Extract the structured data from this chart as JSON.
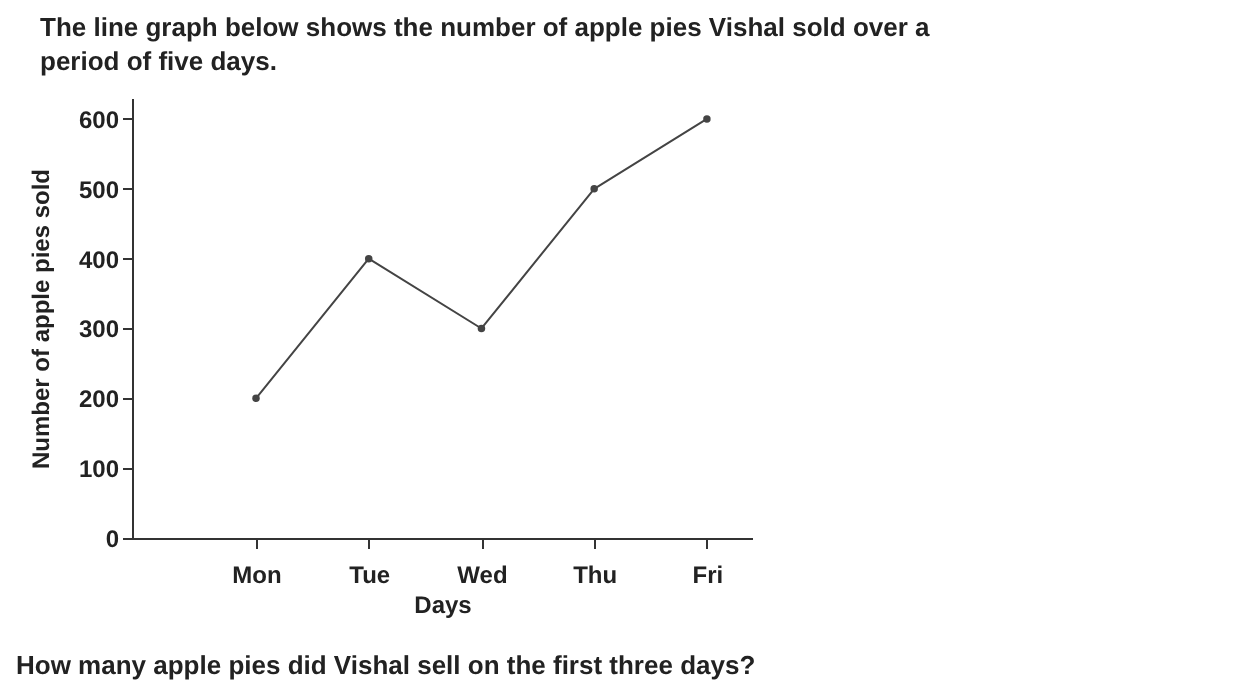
{
  "chart_data": {
    "type": "line",
    "title": "The line graph below shows the number of apple pies Vishal sold over a period of five days.",
    "xlabel": "Days",
    "ylabel": "Number of apple pies sold",
    "categories": [
      "Mon",
      "Tue",
      "Wed",
      "Thu",
      "Fri"
    ],
    "series": [
      {
        "color": "#444444",
        "values": [
          200,
          400,
          300,
          500,
          600
        ]
      }
    ],
    "ylim": [
      0,
      630
    ],
    "yticks": [
      0,
      100,
      200,
      300,
      400,
      500,
      600
    ],
    "marker": "circle",
    "annotations": [
      "How many apple pies did Vishal sell on the first three days?"
    ]
  }
}
